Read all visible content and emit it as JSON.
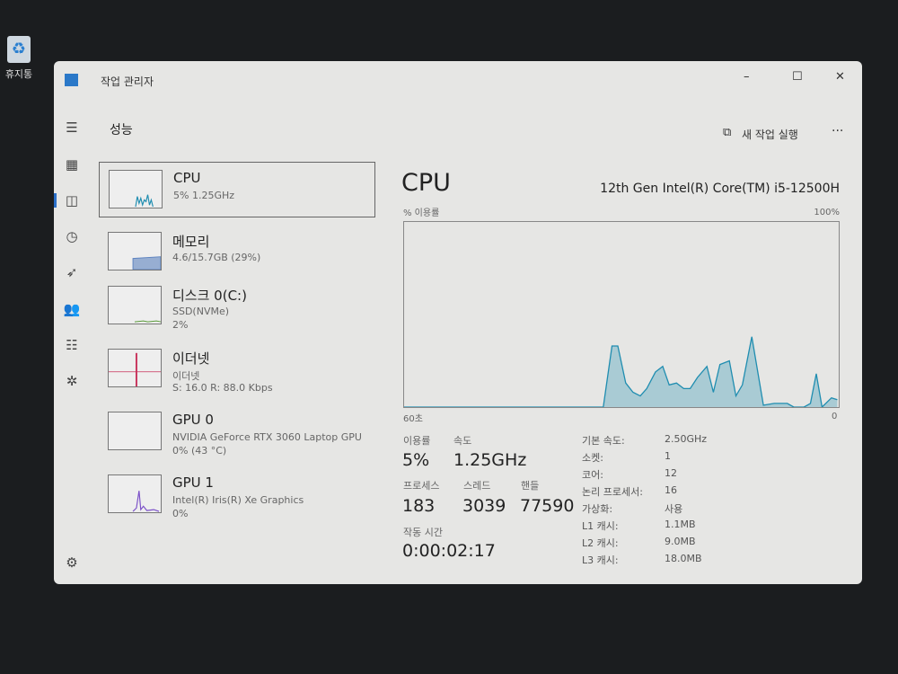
{
  "desktop": {
    "recycle_bin_label": "휴지통"
  },
  "window": {
    "title": "작업 관리자",
    "controls": {
      "minimize": "–",
      "maximize": "☐",
      "close": "✕"
    }
  },
  "header": {
    "page_title": "성능",
    "run_new_task": "새 작업 실행",
    "more": "···"
  },
  "sidebar": {
    "icons": [
      "menu-icon",
      "processes-icon",
      "performance-icon",
      "app-history-icon",
      "startup-icon",
      "users-icon",
      "details-icon",
      "services-icon",
      "settings-icon"
    ]
  },
  "resources": [
    {
      "name": "CPU",
      "line1": "5% 1.25GHz",
      "line2": "",
      "color": "#1f8db0"
    },
    {
      "name": "메모리",
      "line1": "4.6/15.7GB (29%)",
      "line2": "",
      "color": "#5d83c0"
    },
    {
      "name": "디스크 0(C:)",
      "line1": "SSD(NVMe)",
      "line2": "2%",
      "color": "#5a9a3a"
    },
    {
      "name": "이더넷",
      "line1": "이더넷",
      "line2": "S: 16.0 R: 88.0 Kbps",
      "color": "#c8305a"
    },
    {
      "name": "GPU 0",
      "line1": "NVIDIA GeForce RTX 3060 Laptop GPU",
      "line2": "0% (43 °C)",
      "color": "#7a4fc8"
    },
    {
      "name": "GPU 1",
      "line1": "Intel(R) Iris(R) Xe Graphics",
      "line2": "0%",
      "color": "#7a4fc8"
    }
  ],
  "detail": {
    "title": "CPU",
    "model": "12th Gen Intel(R) Core(TM) i5-12500H",
    "stats": {
      "utilization_label": "이용률",
      "utilization": "5%",
      "speed_label": "속도",
      "speed": "1.25GHz",
      "processes_label": "프로세스",
      "processes": "183",
      "threads_label": "스레드",
      "threads": "3039",
      "handles_label": "핸들",
      "handles": "77590",
      "uptime_label": "작동 시간",
      "uptime": "0:00:02:17"
    },
    "specs": [
      {
        "k": "기본 속도:",
        "v": "2.50GHz"
      },
      {
        "k": "소켓:",
        "v": "1"
      },
      {
        "k": "코어:",
        "v": "12"
      },
      {
        "k": "논리 프로세서:",
        "v": "16"
      },
      {
        "k": "가상화:",
        "v": "사용"
      },
      {
        "k": "L1 캐시:",
        "v": "1.1MB"
      },
      {
        "k": "L2 캐시:",
        "v": "9.0MB"
      },
      {
        "k": "L3 캐시:",
        "v": "18.0MB"
      }
    ]
  },
  "chart_data": {
    "type": "area",
    "ylabel": "% 이용률",
    "ymax_label": "100%",
    "xmin_label": "60초",
    "xmax_label": "0",
    "xlim": [
      60,
      0
    ],
    "ylim": [
      0,
      100
    ],
    "grid": false,
    "color": "#1f8db0",
    "x": [
      60,
      32.5,
      31.3,
      30.5,
      29.4,
      28.4,
      27.4,
      26.5,
      25.3,
      24.3,
      23.4,
      22.4,
      21.4,
      20.5,
      19.5,
      18.2,
      17.3,
      16.4,
      15.1,
      14.2,
      13.3,
      12.0,
      10.4,
      8.9,
      7.1,
      6.2,
      4.8,
      3.9,
      3.1,
      2.3,
      1.0,
      0.2
    ],
    "y": [
      0,
      0,
      33,
      33,
      13,
      8,
      6,
      10,
      19,
      22,
      12,
      13,
      10,
      10,
      16,
      22,
      8,
      23,
      25,
      6,
      12,
      38,
      1,
      2,
      2,
      0,
      0,
      2,
      18,
      0,
      5,
      4
    ]
  }
}
